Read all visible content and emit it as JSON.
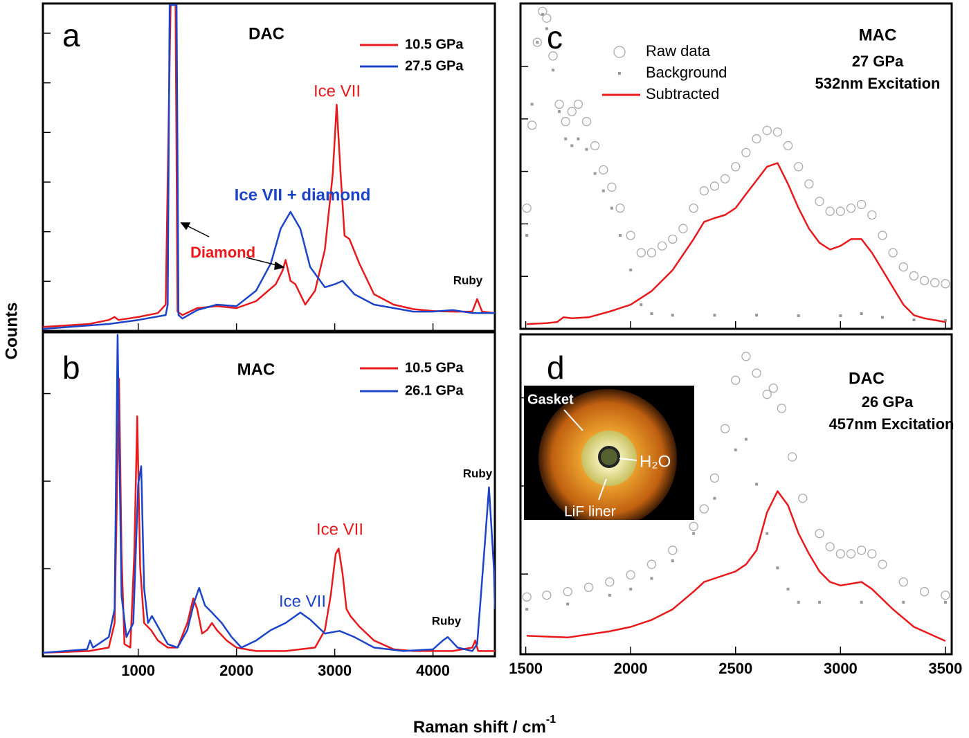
{
  "figure": {
    "y_label": "Counts",
    "x_label": "Raman shift / cm",
    "x_label_sup": "-1",
    "inset": {
      "labels": [
        "Gasket",
        "H₂O",
        "LiF liner"
      ]
    }
  },
  "chart_data": [
    {
      "type": "line",
      "xlim": [
        30,
        4630
      ],
      "ylim": [
        0,
        6.6
      ],
      "xticks": [
        1000,
        2000,
        3000,
        4000
      ],
      "yticks": [
        1,
        2,
        3,
        4,
        5,
        6
      ],
      "xtick_labels": false,
      "legend": true,
      "annotations": [
        {
          "text": "a",
          "color": "#000000"
        },
        {
          "text": "DAC",
          "color": "#000000"
        },
        {
          "text": "Ice VII",
          "color": "#e8191c"
        },
        {
          "text": "Ice VII + diamond",
          "color": "#1c44c8"
        },
        {
          "text": "Diamond",
          "color": "#e8191c"
        },
        {
          "text": "Ruby",
          "color": "#000000"
        }
      ],
      "series": [
        {
          "name": "10.5 GPa",
          "color": "#e8191c",
          "style": "line",
          "x": [
            30,
            500,
            700,
            760,
            800,
            1000,
            1200,
            1280,
            1310,
            1330,
            1380,
            1400,
            1450,
            1600,
            1800,
            2000,
            2200,
            2400,
            2470,
            2500,
            2550,
            2600,
            2700,
            2800,
            2900,
            2980,
            3020,
            3060,
            3100,
            3150,
            3250,
            3400,
            3600,
            3800,
            4000,
            4200,
            4400,
            4450,
            4500,
            4630
          ],
          "values": [
            0.08,
            0.14,
            0.22,
            0.28,
            0.22,
            0.28,
            0.36,
            0.53,
            4.28,
            6.57,
            6.57,
            0.39,
            0.32,
            0.46,
            0.5,
            0.46,
            0.6,
            0.94,
            1.22,
            1.43,
            1.01,
            0.94,
            0.53,
            0.81,
            1.64,
            3.17,
            4.56,
            3.17,
            1.92,
            1.85,
            1.36,
            0.74,
            0.53,
            0.44,
            0.4,
            0.39,
            0.39,
            0.64,
            0.39,
            0.36
          ]
        },
        {
          "name": "27.5 GPa",
          "color": "#1c44c8",
          "style": "line",
          "x": [
            30,
            700,
            1000,
            1280,
            1300,
            1320,
            1390,
            1410,
            1450,
            1600,
            1800,
            2000,
            2200,
            2350,
            2450,
            2550,
            2650,
            2750,
            2900,
            3000,
            3080,
            3200,
            3400,
            3600,
            3800,
            4000,
            4200,
            4400,
            4630
          ],
          "values": [
            0.04,
            0.14,
            0.22,
            0.32,
            0.53,
            6.57,
            6.57,
            0.32,
            0.25,
            0.42,
            0.53,
            0.5,
            0.81,
            1.36,
            2.06,
            2.4,
            2.06,
            1.29,
            0.88,
            0.94,
            1.01,
            0.74,
            0.53,
            0.46,
            0.39,
            0.39,
            0.42,
            0.36,
            0.36
          ]
        }
      ]
    },
    {
      "type": "line",
      "xlim": [
        30,
        4630
      ],
      "ylim": [
        0,
        3.7
      ],
      "xticks": [
        1000,
        2000,
        3000,
        4000
      ],
      "yticks": [
        1,
        2,
        3
      ],
      "xtick_labels": true,
      "legend": true,
      "annotations": [
        {
          "text": "b",
          "color": "#000000"
        },
        {
          "text": "MAC",
          "color": "#000000"
        },
        {
          "text": "Ice VII",
          "color": "#e8191c"
        },
        {
          "text": "Ice VII",
          "color": "#1c44c8"
        },
        {
          "text": "Ruby",
          "color": "#000000"
        },
        {
          "text": "Ruby",
          "color": "#000000"
        }
      ],
      "series": [
        {
          "name": "10.5 GPa",
          "color": "#e8191c",
          "style": "line",
          "x": [
            30,
            500,
            700,
            760,
            805,
            830,
            860,
            920,
            960,
            990,
            1020,
            1060,
            1130,
            1200,
            1300,
            1400,
            1500,
            1560,
            1600,
            1650,
            1700,
            1750,
            1800,
            1900,
            2000,
            2200,
            2500,
            2800,
            2900,
            2960,
            3010,
            3040,
            3080,
            3120,
            3160,
            3250,
            3400,
            3600,
            3800,
            4000,
            4200,
            4400,
            4430,
            4460,
            4630
          ],
          "values": [
            0.04,
            0.06,
            0.1,
            0.38,
            3.17,
            1.17,
            0.14,
            0.1,
            1.17,
            2.74,
            1.02,
            0.38,
            0.3,
            0.18,
            0.1,
            0.1,
            0.38,
            0.66,
            0.54,
            0.26,
            0.3,
            0.38,
            0.3,
            0.18,
            0.1,
            0.06,
            0.06,
            0.1,
            0.3,
            0.7,
            1.17,
            1.23,
            0.94,
            0.54,
            0.46,
            0.34,
            0.18,
            0.08,
            0.06,
            0.06,
            0.06,
            0.1,
            0.18,
            0.06,
            0.06
          ]
        },
        {
          "name": "26.1 GPa",
          "color": "#1c44c8",
          "style": "line",
          "x": [
            30,
            480,
            510,
            540,
            700,
            760,
            790,
            830,
            880,
            950,
            1000,
            1030,
            1060,
            1100,
            1140,
            1200,
            1300,
            1400,
            1500,
            1570,
            1620,
            1680,
            1750,
            1850,
            1950,
            2050,
            2200,
            2350,
            2500,
            2650,
            2750,
            2900,
            3050,
            3200,
            3400,
            3700,
            4000,
            4100,
            4150,
            4250,
            4400,
            4450,
            4520,
            4570,
            4620,
            4630
          ],
          "values": [
            0.04,
            0.08,
            0.18,
            0.1,
            0.22,
            0.54,
            3.67,
            0.69,
            0.22,
            0.38,
            1.97,
            2.17,
            0.78,
            0.38,
            0.46,
            0.34,
            0.14,
            0.1,
            0.3,
            0.62,
            0.78,
            0.58,
            0.5,
            0.38,
            0.22,
            0.1,
            0.18,
            0.3,
            0.38,
            0.5,
            0.42,
            0.26,
            0.29,
            0.22,
            0.1,
            0.06,
            0.08,
            0.18,
            0.22,
            0.1,
            0.06,
            0.14,
            1.17,
            1.93,
            1.0,
            0.54
          ]
        }
      ]
    },
    {
      "type": "line",
      "xlim": [
        1475,
        3530
      ],
      "ylim": [
        0,
        6.2
      ],
      "xticks": [
        1500,
        2000,
        2500,
        3000,
        3500
      ],
      "yticks": [
        1,
        2,
        3,
        4,
        5
      ],
      "xtick_labels": false,
      "legend": true,
      "annotations": [
        {
          "text": "c",
          "color": "#000000"
        },
        {
          "text": "MAC",
          "color": "#000000"
        },
        {
          "text": "27 GPa",
          "color": "#000000"
        },
        {
          "text": "532nm Excitation",
          "color": "#000000"
        }
      ],
      "series": [
        {
          "name": "Raw data",
          "color": "#aaaaaa",
          "style": "circles",
          "x": [
            1505,
            1530,
            1555,
            1580,
            1600,
            1630,
            1660,
            1690,
            1720,
            1750,
            1790,
            1830,
            1870,
            1910,
            1950,
            2000,
            2050,
            2100,
            2150,
            2200,
            2250,
            2300,
            2350,
            2400,
            2450,
            2500,
            2550,
            2600,
            2650,
            2700,
            2750,
            2800,
            2850,
            2900,
            2950,
            3000,
            3050,
            3100,
            3150,
            3200,
            3250,
            3300,
            3350,
            3400,
            3450,
            3500
          ],
          "values": [
            2.3,
            3.88,
            5.46,
            6.05,
            5.92,
            5.2,
            4.28,
            3.95,
            4.14,
            4.28,
            3.95,
            3.49,
            3.03,
            2.7,
            2.3,
            1.78,
            1.45,
            1.45,
            1.58,
            1.71,
            1.91,
            2.3,
            2.63,
            2.72,
            2.86,
            3.09,
            3.36,
            3.62,
            3.78,
            3.75,
            3.49,
            3.09,
            2.76,
            2.43,
            2.24,
            2.24,
            2.3,
            2.37,
            2.17,
            1.78,
            1.45,
            1.18,
            1.01,
            0.92,
            0.88,
            0.86
          ]
        },
        {
          "name": "Background",
          "color": "#999999",
          "style": "dots",
          "x": [
            1505,
            1530,
            1555,
            1580,
            1600,
            1630,
            1660,
            1690,
            1720,
            1750,
            1790,
            1830,
            1870,
            1910,
            1950,
            2000,
            2050,
            2100,
            2200,
            2400,
            2600,
            2800,
            3000,
            3100,
            3200,
            3350,
            3500
          ],
          "values": [
            1.78,
            4.28,
            5.46,
            5.99,
            5.72,
            4.93,
            4.14,
            3.62,
            3.49,
            3.62,
            3.42,
            2.96,
            2.63,
            2.3,
            1.78,
            1.12,
            0.46,
            0.29,
            0.26,
            0.26,
            0.26,
            0.25,
            0.25,
            0.29,
            0.22,
            0.17,
            0.16
          ]
        },
        {
          "name": "Subtracted",
          "color": "#e8191c",
          "style": "line",
          "x": [
            1505,
            1600,
            1650,
            1680,
            1720,
            1800,
            1900,
            2000,
            2100,
            2200,
            2300,
            2350,
            2400,
            2450,
            2500,
            2550,
            2600,
            2650,
            2700,
            2750,
            2800,
            2850,
            2900,
            2950,
            3000,
            3050,
            3100,
            3150,
            3200,
            3250,
            3300,
            3350,
            3400,
            3500
          ],
          "values": [
            0.09,
            0.11,
            0.13,
            0.22,
            0.2,
            0.22,
            0.33,
            0.46,
            0.72,
            1.12,
            1.71,
            2.04,
            2.11,
            2.17,
            2.3,
            2.57,
            2.83,
            3.09,
            3.16,
            2.76,
            2.3,
            1.91,
            1.64,
            1.51,
            1.58,
            1.71,
            1.71,
            1.45,
            1.12,
            0.79,
            0.46,
            0.26,
            0.2,
            0.13
          ]
        }
      ]
    },
    {
      "type": "line",
      "xlim": [
        1475,
        3530
      ],
      "ylim": [
        0.09,
        3.72
      ],
      "xticks": [
        1500,
        2000,
        2500,
        3000,
        3500
      ],
      "yticks": [
        1,
        2,
        3
      ],
      "xtick_labels": true,
      "legend": false,
      "annotations": [
        {
          "text": "d",
          "color": "#000000"
        },
        {
          "text": "DAC",
          "color": "#000000"
        },
        {
          "text": "26 GPa",
          "color": "#000000"
        },
        {
          "text": "457nm Excitation",
          "color": "#000000"
        }
      ],
      "series": [
        {
          "name": "Raw data",
          "color": "#aaaaaa",
          "style": "circles",
          "x": [
            1505,
            1600,
            1700,
            1800,
            1900,
            2000,
            2100,
            2200,
            2300,
            2350,
            2400,
            2450,
            2500,
            2550,
            2600,
            2650,
            2680,
            2720,
            2770,
            2820,
            2900,
            2950,
            3000,
            3050,
            3100,
            3150,
            3200,
            3300,
            3400,
            3500
          ],
          "values": [
            0.74,
            0.76,
            0.8,
            0.85,
            0.91,
            0.99,
            1.11,
            1.27,
            1.54,
            1.74,
            2.09,
            2.65,
            3.2,
            3.47,
            3.28,
            3.04,
            3.11,
            2.88,
            2.33,
            1.86,
            1.46,
            1.31,
            1.23,
            1.23,
            1.27,
            1.23,
            1.11,
            0.91,
            0.8,
            0.76
          ]
        },
        {
          "name": "Background",
          "color": "#999999",
          "style": "dots",
          "x": [
            1505,
            1700,
            1900,
            2000,
            2100,
            2200,
            2300,
            2400,
            2500,
            2550,
            2600,
            2650,
            2700,
            2750,
            2800,
            2900,
            3100,
            3300,
            3500
          ],
          "values": [
            0.6,
            0.66,
            0.76,
            0.83,
            0.95,
            1.15,
            1.46,
            1.86,
            2.41,
            2.53,
            2.02,
            1.46,
            1.07,
            0.83,
            0.68,
            0.68,
            0.68,
            0.68,
            0.68
          ]
        },
        {
          "name": "Subtracted",
          "color": "#e8191c",
          "style": "line",
          "x": [
            1505,
            1700,
            1900,
            2000,
            2100,
            2200,
            2300,
            2350,
            2400,
            2500,
            2550,
            2600,
            2650,
            2700,
            2750,
            2800,
            2850,
            2900,
            2950,
            3000,
            3100,
            3150,
            3250,
            3350,
            3500
          ],
          "values": [
            0.3,
            0.28,
            0.35,
            0.4,
            0.48,
            0.6,
            0.8,
            0.91,
            0.95,
            1.03,
            1.11,
            1.27,
            1.7,
            1.94,
            1.78,
            1.46,
            1.23,
            1.03,
            0.91,
            0.87,
            0.91,
            0.83,
            0.6,
            0.4,
            0.24
          ]
        }
      ]
    }
  ]
}
